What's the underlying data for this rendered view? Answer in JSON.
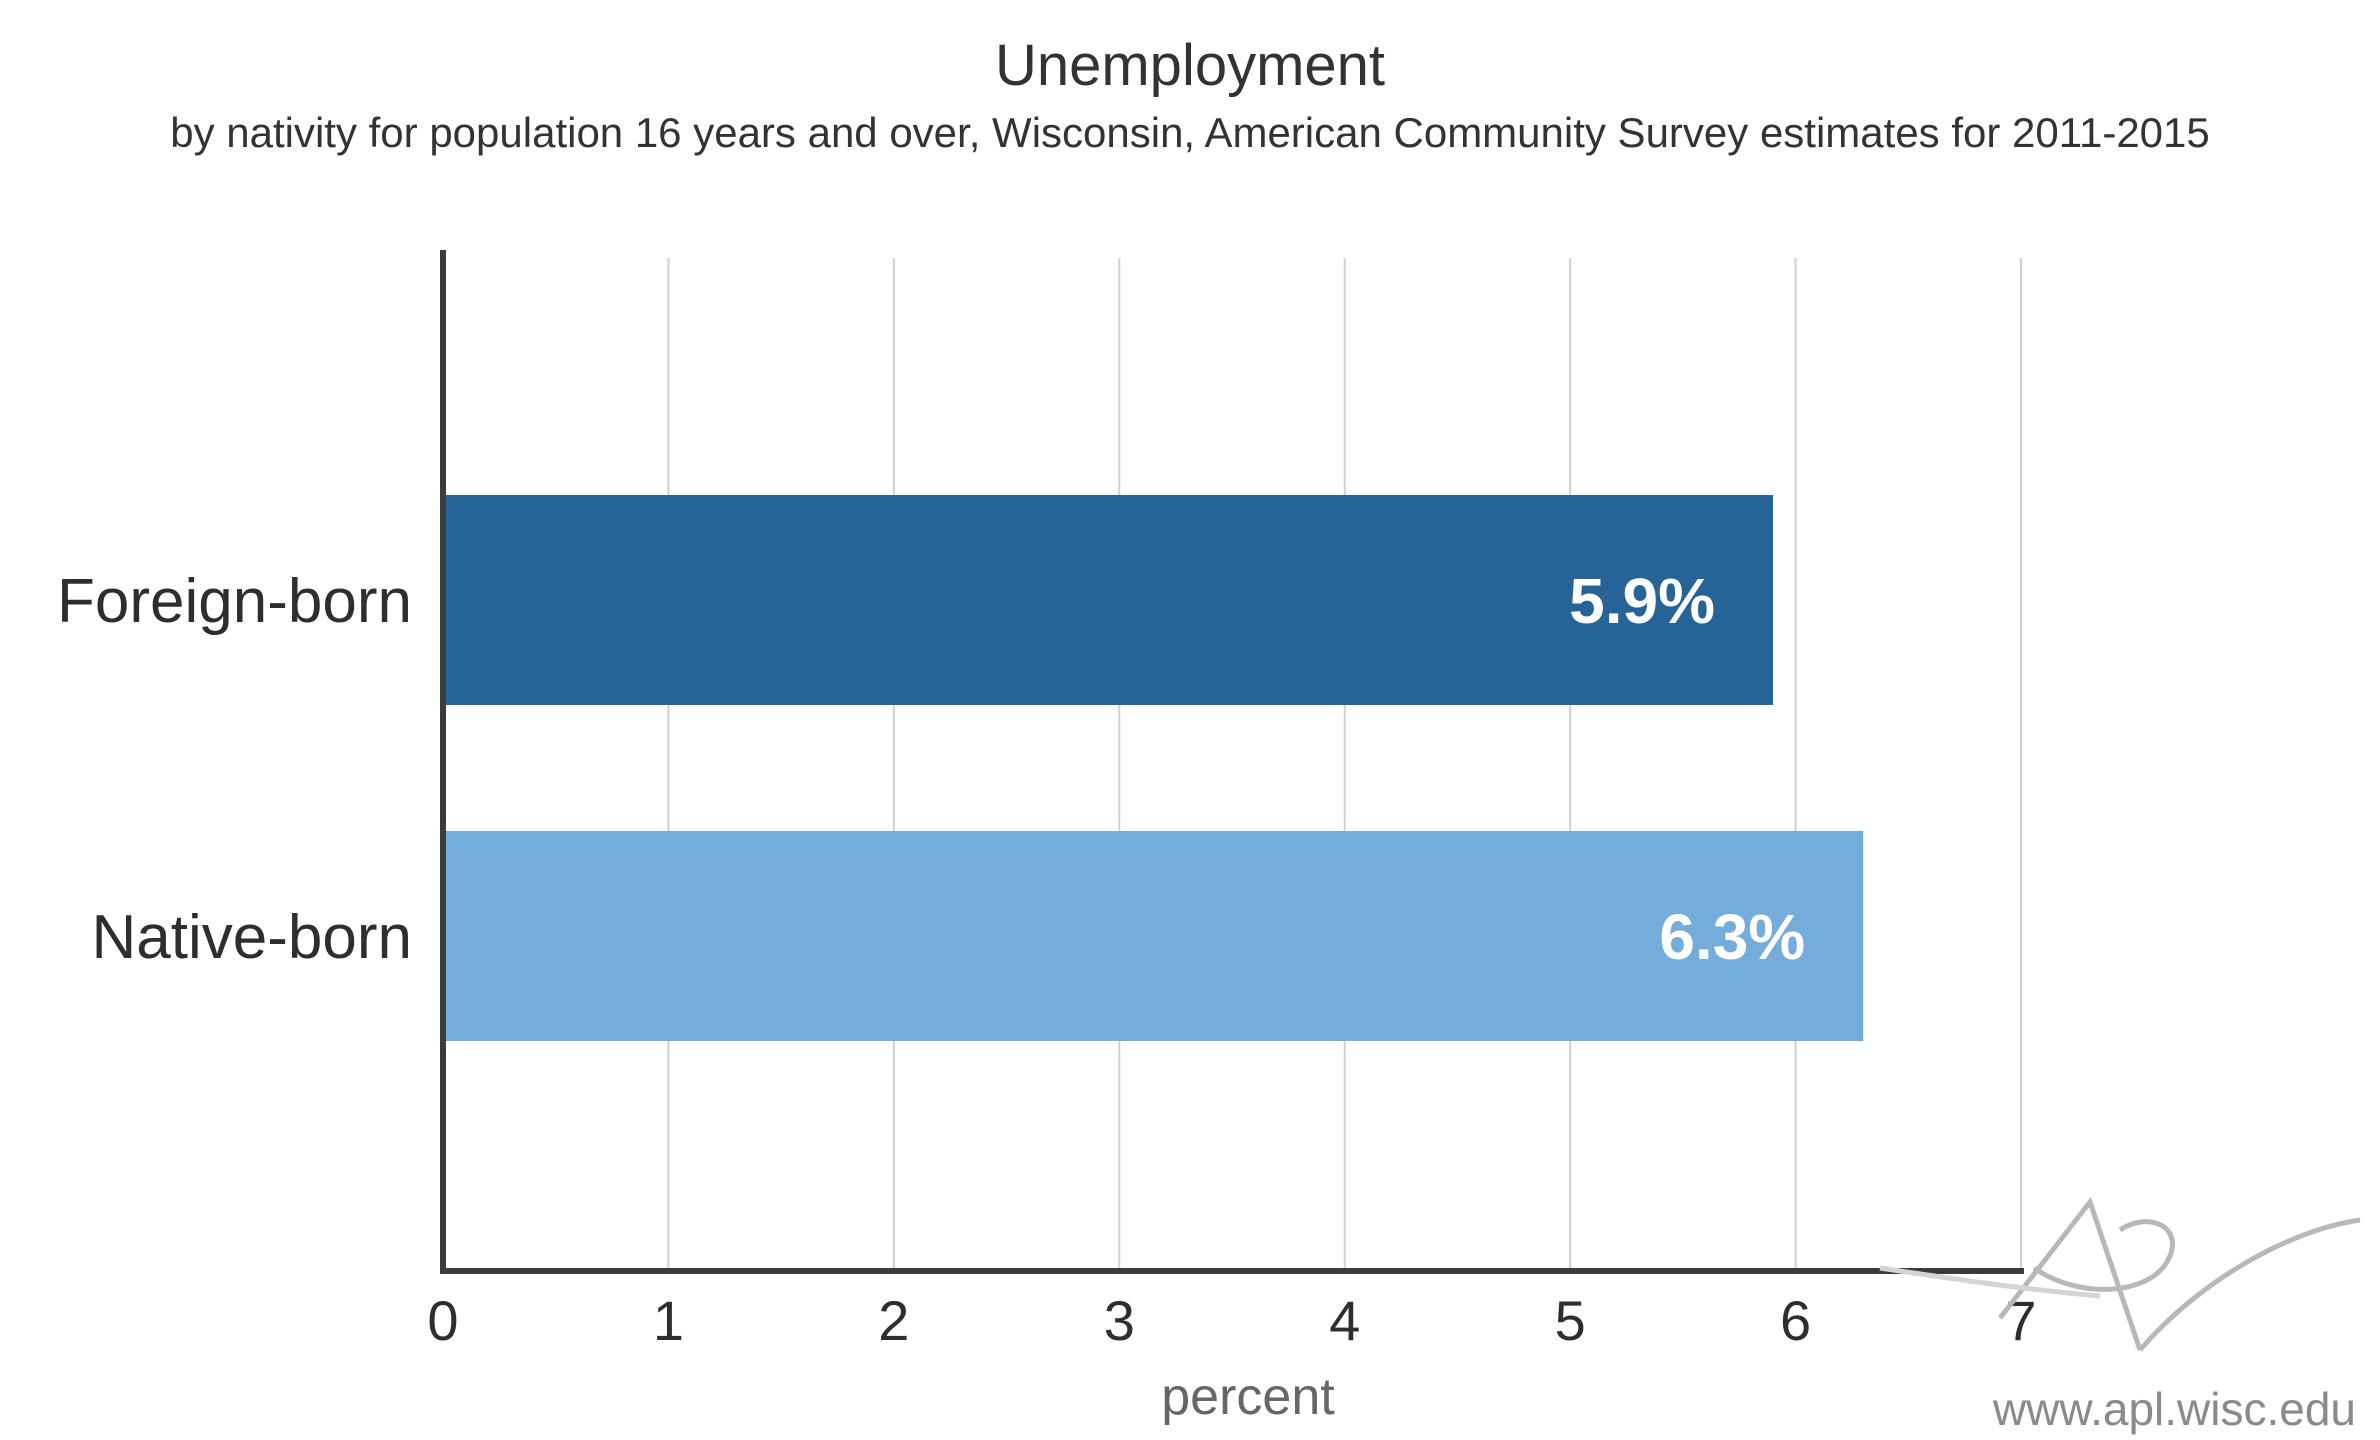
{
  "chart_data": {
    "type": "bar",
    "orientation": "horizontal",
    "title": "Unemployment",
    "subtitle": "by nativity for population 16 years and over, Wisconsin, American Community Survey estimates for 2011-2015",
    "categories": [
      "Foreign-born",
      "Native-born"
    ],
    "values": [
      5.9,
      6.3
    ],
    "data_labels": [
      "5.9%",
      "6.3%"
    ],
    "colors": [
      "#266397",
      "#74acdc"
    ],
    "xlabel": "percent",
    "ylabel": "",
    "xlim": [
      0,
      7
    ],
    "xticks": [
      "0",
      "1",
      "2",
      "3",
      "4",
      "5",
      "6",
      "7"
    ],
    "grid": "vertical",
    "legend": "none"
  },
  "watermark": {
    "text": "www.apl.wisc.edu",
    "logo": "apl-logo"
  }
}
